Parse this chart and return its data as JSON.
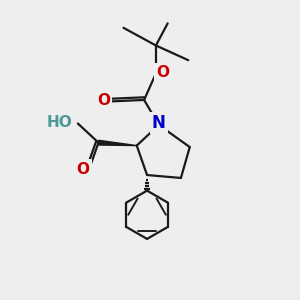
{
  "bg_color": "#eeeeee",
  "bond_color": "#1a1a1a",
  "N_color": "#0000cc",
  "O_color": "#cc0000",
  "OH_color": "#4d9999",
  "line_width": 1.6,
  "font_size_atom": 11,
  "figsize": [
    3.0,
    3.0
  ],
  "dpi": 100,
  "xlim": [
    0,
    10
  ],
  "ylim": [
    0,
    10
  ]
}
